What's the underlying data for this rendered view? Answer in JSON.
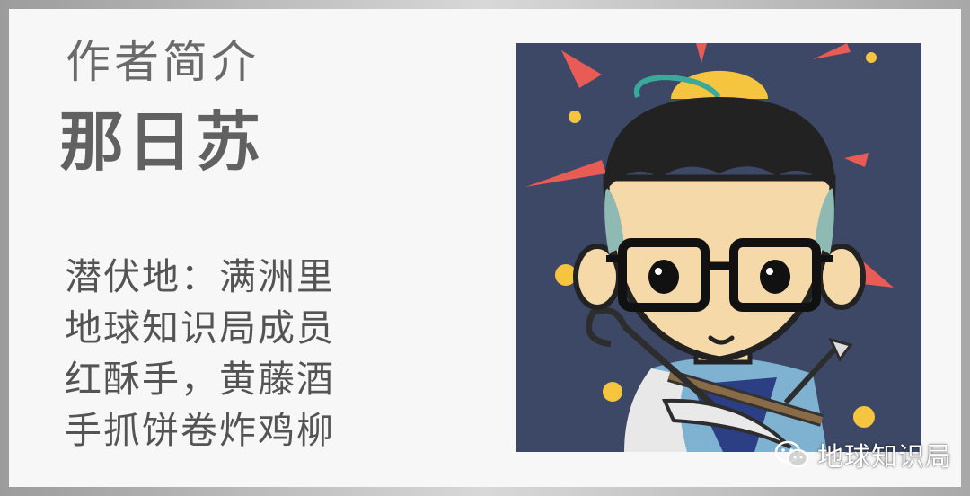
{
  "profile": {
    "section_label": "作者简介",
    "name": "那日苏",
    "bio_lines": [
      "潜伏地：满洲里",
      "地球知识局成员",
      "红酥手，黄藤酒",
      "手抓饼卷炸鸡柳"
    ]
  },
  "avatar": {
    "icon": "cartoon-archer-avatar-icon",
    "background_color": "#3c4866"
  },
  "watermark": {
    "icon": "wechat-icon",
    "text": "地球知识局"
  }
}
